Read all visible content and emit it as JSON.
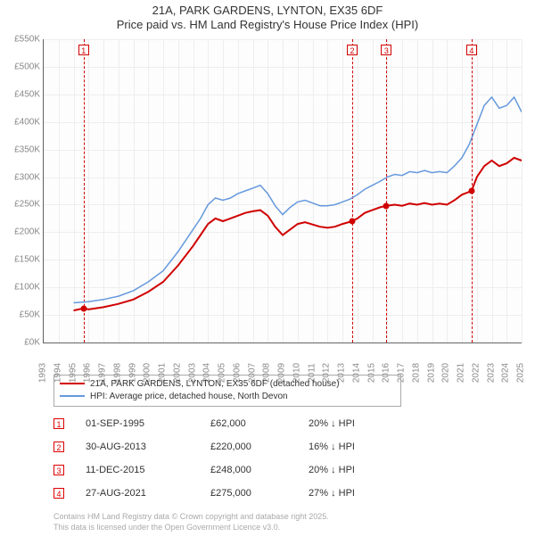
{
  "title": "21A, PARK GARDENS, LYNTON, EX35 6DF",
  "subtitle": "Price paid vs. HM Land Registry's House Price Index (HPI)",
  "chart": {
    "type": "line",
    "background_color": "#fdfdfd",
    "grid_color": "#eeeeee",
    "axis_color": "#666666",
    "ylabel_color": "#888888",
    "ylim_min": 0,
    "ylim_max": 550000,
    "ytick_step": 50000,
    "yticks": [
      "£0K",
      "£50K",
      "£100K",
      "£150K",
      "£200K",
      "£250K",
      "£300K",
      "£350K",
      "£400K",
      "£450K",
      "£500K",
      "£550K"
    ],
    "x_min": 1993,
    "x_max": 2025,
    "xticks": [
      "1993",
      "1994",
      "1995",
      "1996",
      "1997",
      "1998",
      "1999",
      "2000",
      "2001",
      "2002",
      "2003",
      "2004",
      "2005",
      "2006",
      "2007",
      "2008",
      "2009",
      "2010",
      "2011",
      "2012",
      "2013",
      "2014",
      "2015",
      "2016",
      "2017",
      "2018",
      "2019",
      "2020",
      "2021",
      "2022",
      "2023",
      "2024",
      "2025"
    ],
    "series": [
      {
        "name": "property",
        "label": "21A, PARK GARDENS, LYNTON, EX35 6DF (detached house)",
        "color": "#d00000",
        "width": 2,
        "data": [
          [
            1995.0,
            58000
          ],
          [
            1995.67,
            62000
          ],
          [
            1996.0,
            60000
          ],
          [
            1997.0,
            64000
          ],
          [
            1998.0,
            70000
          ],
          [
            1999.0,
            78000
          ],
          [
            2000.0,
            92000
          ],
          [
            2001.0,
            110000
          ],
          [
            2002.0,
            140000
          ],
          [
            2003.0,
            175000
          ],
          [
            2003.5,
            195000
          ],
          [
            2004.0,
            215000
          ],
          [
            2004.5,
            225000
          ],
          [
            2005.0,
            220000
          ],
          [
            2005.5,
            225000
          ],
          [
            2006.0,
            230000
          ],
          [
            2006.5,
            235000
          ],
          [
            2007.0,
            238000
          ],
          [
            2007.5,
            240000
          ],
          [
            2008.0,
            230000
          ],
          [
            2008.5,
            210000
          ],
          [
            2009.0,
            195000
          ],
          [
            2009.5,
            205000
          ],
          [
            2010.0,
            215000
          ],
          [
            2010.5,
            218000
          ],
          [
            2011.0,
            214000
          ],
          [
            2011.5,
            210000
          ],
          [
            2012.0,
            208000
          ],
          [
            2012.5,
            210000
          ],
          [
            2013.0,
            215000
          ],
          [
            2013.66,
            220000
          ],
          [
            2014.0,
            225000
          ],
          [
            2014.5,
            235000
          ],
          [
            2015.0,
            240000
          ],
          [
            2015.5,
            245000
          ],
          [
            2015.95,
            248000
          ],
          [
            2016.5,
            250000
          ],
          [
            2017.0,
            248000
          ],
          [
            2017.5,
            252000
          ],
          [
            2018.0,
            250000
          ],
          [
            2018.5,
            253000
          ],
          [
            2019.0,
            250000
          ],
          [
            2019.5,
            252000
          ],
          [
            2020.0,
            250000
          ],
          [
            2020.5,
            258000
          ],
          [
            2021.0,
            268000
          ],
          [
            2021.65,
            275000
          ],
          [
            2022.0,
            300000
          ],
          [
            2022.5,
            320000
          ],
          [
            2023.0,
            330000
          ],
          [
            2023.5,
            320000
          ],
          [
            2024.0,
            325000
          ],
          [
            2024.5,
            335000
          ],
          [
            2025.0,
            330000
          ]
        ]
      },
      {
        "name": "hpi",
        "label": "HPI: Average price, detached house, North Devon",
        "color": "#6699dd",
        "width": 1.5,
        "data": [
          [
            1995.0,
            72000
          ],
          [
            1996.0,
            74000
          ],
          [
            1997.0,
            78000
          ],
          [
            1998.0,
            84000
          ],
          [
            1999.0,
            94000
          ],
          [
            2000.0,
            110000
          ],
          [
            2001.0,
            130000
          ],
          [
            2002.0,
            165000
          ],
          [
            2003.0,
            205000
          ],
          [
            2003.5,
            225000
          ],
          [
            2004.0,
            250000
          ],
          [
            2004.5,
            262000
          ],
          [
            2005.0,
            258000
          ],
          [
            2005.5,
            262000
          ],
          [
            2006.0,
            270000
          ],
          [
            2006.5,
            275000
          ],
          [
            2007.0,
            280000
          ],
          [
            2007.5,
            285000
          ],
          [
            2008.0,
            270000
          ],
          [
            2008.5,
            248000
          ],
          [
            2009.0,
            232000
          ],
          [
            2009.5,
            245000
          ],
          [
            2010.0,
            255000
          ],
          [
            2010.5,
            258000
          ],
          [
            2011.0,
            253000
          ],
          [
            2011.5,
            248000
          ],
          [
            2012.0,
            248000
          ],
          [
            2012.5,
            250000
          ],
          [
            2013.0,
            255000
          ],
          [
            2013.5,
            260000
          ],
          [
            2014.0,
            268000
          ],
          [
            2014.5,
            278000
          ],
          [
            2015.0,
            285000
          ],
          [
            2015.5,
            292000
          ],
          [
            2016.0,
            300000
          ],
          [
            2016.5,
            305000
          ],
          [
            2017.0,
            303000
          ],
          [
            2017.5,
            310000
          ],
          [
            2018.0,
            308000
          ],
          [
            2018.5,
            312000
          ],
          [
            2019.0,
            308000
          ],
          [
            2019.5,
            310000
          ],
          [
            2020.0,
            308000
          ],
          [
            2020.5,
            320000
          ],
          [
            2021.0,
            335000
          ],
          [
            2021.5,
            360000
          ],
          [
            2022.0,
            395000
          ],
          [
            2022.5,
            430000
          ],
          [
            2023.0,
            445000
          ],
          [
            2023.5,
            425000
          ],
          [
            2024.0,
            430000
          ],
          [
            2024.5,
            445000
          ],
          [
            2025.0,
            418000
          ]
        ]
      }
    ],
    "sale_points": [
      {
        "x": 1995.67,
        "y": 62000
      },
      {
        "x": 2013.66,
        "y": 220000
      },
      {
        "x": 2015.95,
        "y": 248000
      },
      {
        "x": 2021.65,
        "y": 275000
      }
    ],
    "markers": [
      {
        "n": "1",
        "x": 1995.67
      },
      {
        "n": "2",
        "x": 2013.66
      },
      {
        "n": "3",
        "x": 2015.95
      },
      {
        "n": "4",
        "x": 2021.65
      }
    ],
    "marker_color": "#d00000"
  },
  "legend": {
    "border_color": "#aaaaaa",
    "items": [
      {
        "color": "#d00000",
        "label": "21A, PARK GARDENS, LYNTON, EX35 6DF (detached house)"
      },
      {
        "color": "#6699dd",
        "label": "HPI: Average price, detached house, North Devon"
      }
    ]
  },
  "transactions": [
    {
      "n": "1",
      "date": "01-SEP-1995",
      "price": "£62,000",
      "pct": "20% ↓ HPI"
    },
    {
      "n": "2",
      "date": "30-AUG-2013",
      "price": "£220,000",
      "pct": "16% ↓ HPI"
    },
    {
      "n": "3",
      "date": "11-DEC-2015",
      "price": "£248,000",
      "pct": "20% ↓ HPI"
    },
    {
      "n": "4",
      "date": "27-AUG-2021",
      "price": "£275,000",
      "pct": "27% ↓ HPI"
    }
  ],
  "footer_line1": "Contains HM Land Registry data © Crown copyright and database right 2025.",
  "footer_line2": "This data is licensed under the Open Government Licence v3.0."
}
